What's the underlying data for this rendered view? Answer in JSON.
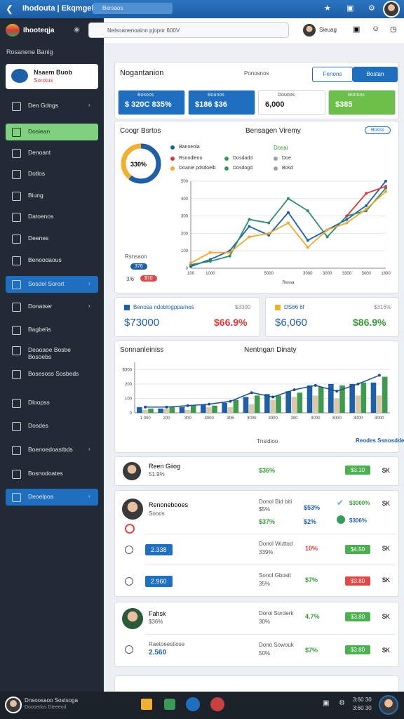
{
  "topbar": {
    "title": "Ihodouta | Ekqmgel",
    "search": "Bersaos"
  },
  "sidebar": {
    "brand": "Ihooteqja",
    "section": "Rosanene Banig",
    "profile": {
      "name": "Nsaem Buob",
      "sub": "Sorotus"
    },
    "items": [
      "Den Gdngs",
      "Dosiean",
      "Denoant",
      "Dotlos",
      "Biung",
      "Datoenos",
      "Deenes",
      "Benoodaous",
      "Sosdel Sorort",
      "Donatser",
      "Bagbelis",
      "Deaoaoe Bosbe Bosoebs",
      "Bosesoss Sosbeds",
      "Dloopss",
      "Dosdes",
      "Boenoedoastbds",
      "Bosnodoates",
      "Deoelpoa"
    ]
  },
  "header": {
    "search": "Nelsoanenoainn pjopor 600V",
    "user": "Sieuag"
  },
  "overview": {
    "title": "Nogantanion",
    "filter": "Ponosnos",
    "button_1": "Fenons",
    "button_2": "Bostan",
    "kpis": [
      {
        "label": "Bosoos",
        "value": "$ 320C 835%"
      },
      {
        "label": "Bounos",
        "value": "$186 $36"
      },
      {
        "label": "Dounos",
        "value": "6,000"
      },
      {
        "label": "Bonoos",
        "value": "$385"
      }
    ]
  },
  "trend": {
    "title": "Coogr Bsrtos",
    "chart_title": "Bensagen Viremy",
    "chart_subtitle": "Dosai",
    "button": "Bosss",
    "donut_label": "330%",
    "donut_note": "Rsnsaon",
    "donut_tag_1": "376",
    "donut_tag_2": "$10",
    "donut_small": "3/6",
    "legend": [
      {
        "name": "Banoeola",
        "color": "#1f5fa8"
      },
      {
        "name": "Rsnodleoo",
        "color": "#d63a3a"
      },
      {
        "name": "Doanie pdsdoeib",
        "color": "#f0a830"
      },
      {
        "name": "Dosdadd",
        "color": "#3a9a5a"
      },
      {
        "name": "Dosdogd",
        "color": "#3a9a5a"
      },
      {
        "name": "Doe",
        "color": "#9aa3ad"
      },
      {
        "name": "Bosd",
        "color": "#9aa3ad"
      }
    ],
    "chart": {
      "type": "line",
      "x_label": "Ressa",
      "categories": [
        "100",
        "1000",
        "",
        "",
        "5000",
        "",
        "3000",
        "3000",
        "3300",
        "3000",
        "1800"
      ],
      "ylim": [
        0,
        500
      ],
      "yticks": [
        0,
        100,
        200,
        300,
        400,
        500
      ],
      "series": [
        {
          "name": "Banoeola",
          "color": "#1f5fa8",
          "values": [
            10,
            50,
            100,
            240,
            190,
            320,
            160,
            220,
            280,
            360,
            500
          ]
        },
        {
          "name": "Dosdadd",
          "color": "#2f8f6a",
          "values": [
            20,
            40,
            70,
            280,
            260,
            400,
            330,
            180,
            300,
            330,
            460
          ]
        },
        {
          "name": "Doanie pdsdoeib",
          "color": "#f0a830",
          "values": [
            30,
            90,
            90,
            180,
            200,
            260,
            120,
            220,
            260,
            340,
            440
          ]
        },
        {
          "name": "Rsnodleoo",
          "color": "#d63a3a",
          "values": [
            null,
            null,
            null,
            null,
            null,
            null,
            null,
            null,
            300,
            430,
            470
          ]
        }
      ]
    }
  },
  "stats": [
    {
      "title": "Benosa ndoblogpparnes",
      "tag": "$3300",
      "value": "$73000",
      "change": "$66.9%"
    },
    {
      "title": "DS66 6f",
      "tag": "$316%",
      "value": "$6,060",
      "change": "$86.9%"
    }
  ],
  "bars": {
    "title": "Sonnanleiniss",
    "subtitle": "Nentngan Dinaty",
    "footer_legend": "Tnsidioo",
    "footer_link": "Reodes Ssnosdde $/K",
    "chart": {
      "type": "bar",
      "categories": [
        "1 000",
        "200",
        "300",
        "3000",
        "306",
        "3000",
        "3000",
        "300",
        "3000",
        "3000",
        "3000",
        "3000"
      ],
      "ylim": [
        0,
        350
      ],
      "yticks": [
        0,
        100,
        200,
        {
          "value": 300,
          "label": "$300"
        }
      ],
      "series": [
        {
          "name": "Dosis",
          "color": "#1f5fa8",
          "values": [
            40,
            30,
            40,
            60,
            70,
            110,
            130,
            150,
            190,
            200,
            200,
            210
          ]
        },
        {
          "name": "Tnsidioo",
          "color": "#d9c9a8",
          "values": [
            20,
            30,
            20,
            40,
            40,
            60,
            90,
            110,
            120,
            100,
            120,
            120
          ]
        },
        {
          "name": "Deos",
          "color": "#3f9a4f",
          "values": [
            30,
            40,
            50,
            50,
            90,
            120,
            120,
            140,
            180,
            190,
            210,
            250
          ]
        },
        {
          "name": "Reodes",
          "color": "#1d4f8a",
          "type": "line",
          "values": [
            40,
            40,
            50,
            60,
            80,
            140,
            110,
            160,
            190,
            150,
            200,
            260
          ]
        }
      ]
    }
  },
  "list": {
    "row1": {
      "name": "Reen Giiog",
      "sub": "51.9%",
      "mid": "$36%",
      "tag": "$3.10",
      "unit": "$K"
    },
    "panel2": {
      "name": "Renonebooes",
      "sub": "Sooos",
      "c1": "Donol Bid biti",
      "c1b": "$5%",
      "c2": "$53%",
      "c3": "$37%",
      "c4": "$2%",
      "r1": "$3000%",
      "r2": "$306%",
      "unit": "$K",
      "rows": [
        {
          "tag": "2.338",
          "label": "Donol Wuttod",
          "sub": "339%",
          "pct": "10%",
          "badge": "$4.50",
          "unit": "$K"
        },
        {
          "tag": "2.960",
          "label": "Sonol Gbosit",
          "sub": "35%",
          "pct": "$7%",
          "badge": "$3.80",
          "unit": "$K"
        }
      ]
    },
    "panel3": {
      "name": "Fahsk",
      "sub": "$36%",
      "label": "Doroi Sorderk",
      "lsub": "30%",
      "pct": "4.7%",
      "badge": "$3.80",
      "unit": "$K",
      "row": {
        "name": "Raetoeestiose",
        "value": "2.560",
        "label": "Dono Sowouk",
        "sub": "50%",
        "pct": "$7%",
        "badge": "$3.80",
        "unit": "$K"
      }
    }
  },
  "taskbar": {
    "name": "Dnsoosaoo Sostsoga",
    "sub": "Doosedos Dieeeod",
    "time": "3:60 30",
    "date": "3:60 30"
  }
}
